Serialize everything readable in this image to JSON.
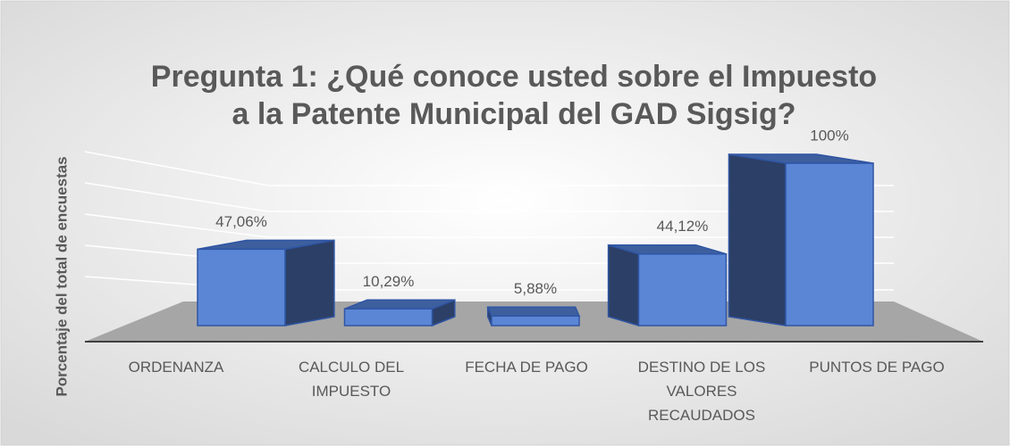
{
  "chart_data": {
    "type": "bar3d",
    "title": "Pregunta 1: ¿Qué conoce usted sobre el Impuesto a la Patente Municipal del GAD Sigsig?",
    "y_axis_label": "Porcentaje del total de encuestas",
    "categories": [
      "ORDENANZA",
      "CALCULO DEL IMPUESTO",
      "FECHA DE PAGO",
      "DESTINO DE LOS VALORES RECAUDADOS",
      "PUNTOS DE PAGO"
    ],
    "values": [
      47.06,
      10.29,
      5.88,
      44.12,
      100
    ],
    "value_labels": [
      "47,06%",
      "10,29%",
      "5,88%",
      "44,12%",
      "100%"
    ],
    "color": "#5b86d6",
    "ylim": [
      0,
      100
    ]
  }
}
